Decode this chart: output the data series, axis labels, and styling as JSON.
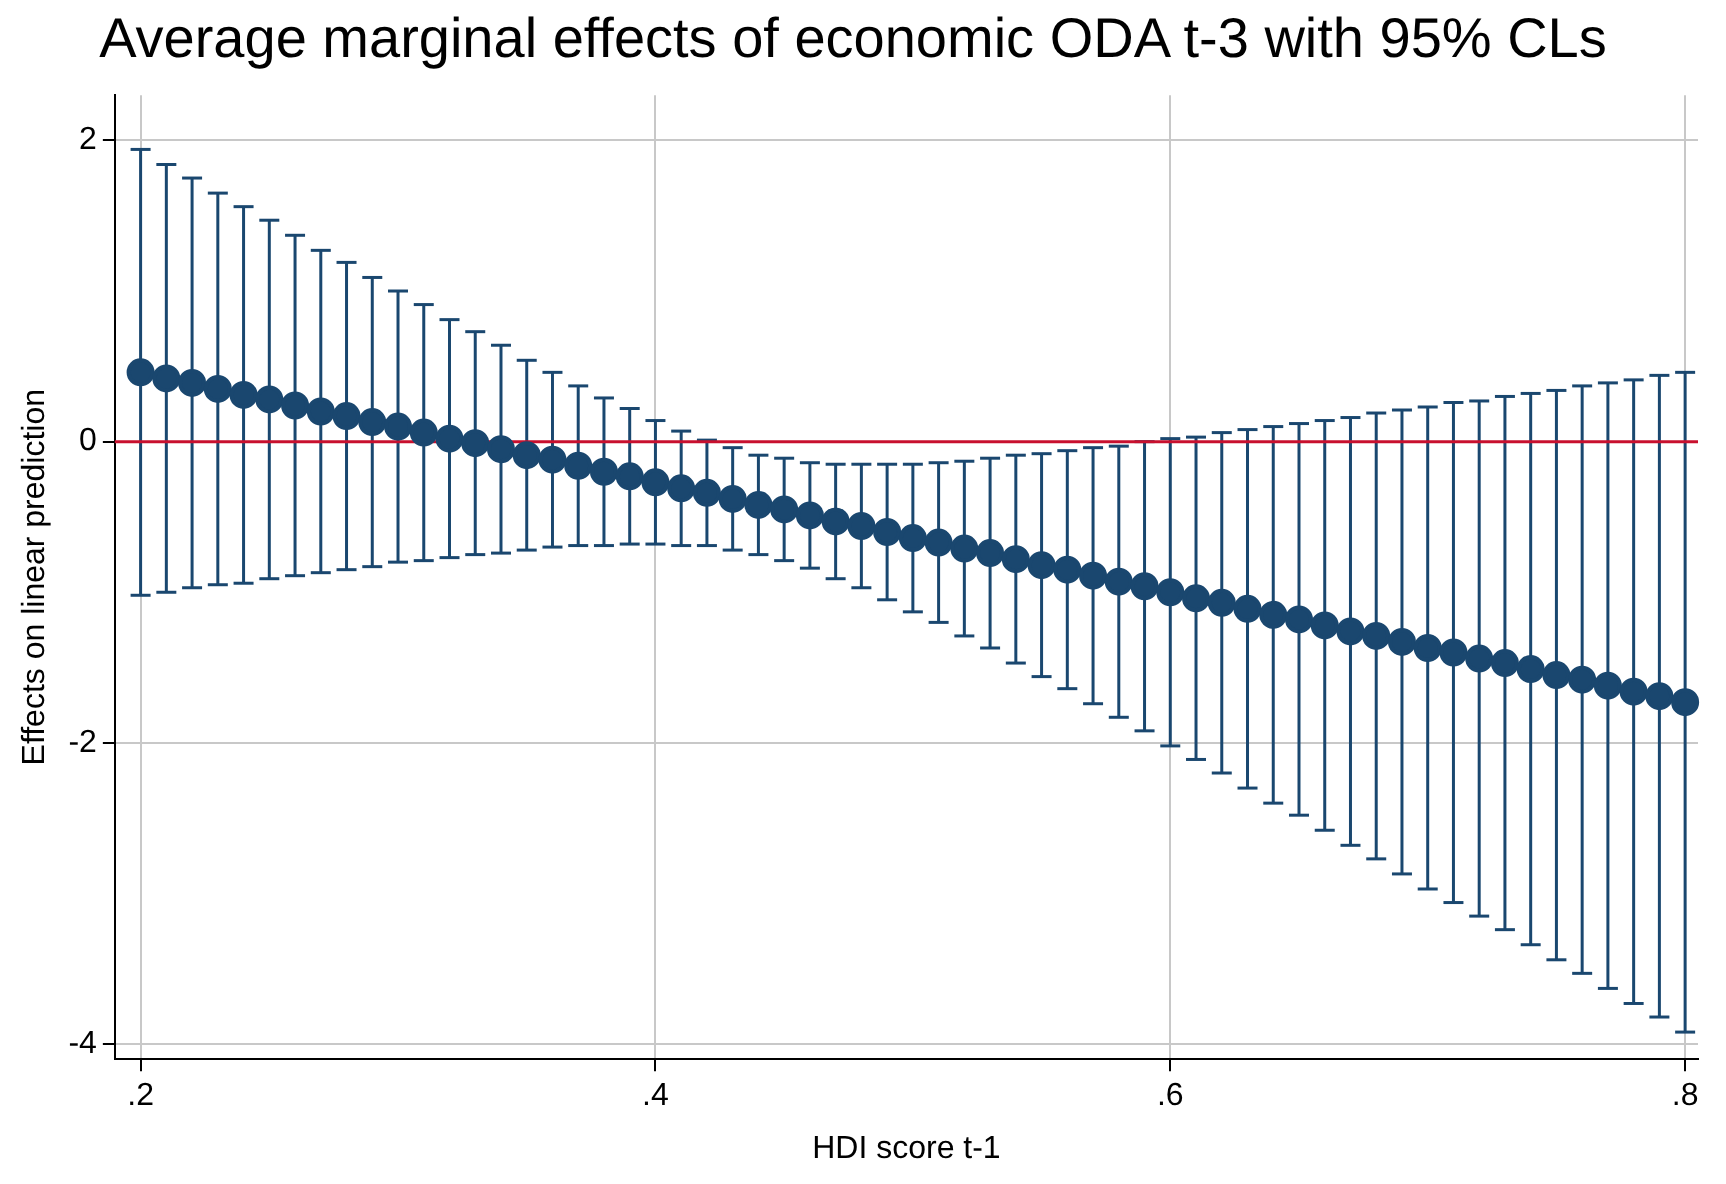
{
  "chart_data": {
    "type": "scatter",
    "title": "Average marginal effects of economic ODA t-3 with 95% CLs",
    "xlabel": "HDI score t-1",
    "ylabel": "Effects on linear prediction",
    "x": [
      0.2,
      0.21,
      0.22,
      0.23,
      0.24,
      0.25,
      0.26,
      0.27,
      0.28,
      0.29,
      0.3,
      0.31,
      0.32,
      0.33,
      0.34,
      0.35,
      0.36,
      0.37,
      0.38,
      0.39,
      0.4,
      0.41,
      0.42,
      0.43,
      0.44,
      0.45,
      0.46,
      0.47,
      0.48,
      0.49,
      0.5,
      0.51,
      0.52,
      0.53,
      0.54,
      0.55,
      0.56,
      0.57,
      0.58,
      0.59,
      0.6,
      0.61,
      0.62,
      0.63,
      0.64,
      0.65,
      0.66,
      0.67,
      0.68,
      0.69,
      0.7,
      0.71,
      0.72,
      0.73,
      0.74,
      0.75,
      0.76,
      0.77,
      0.78,
      0.79,
      0.8
    ],
    "series": [
      {
        "color": "#1a476f",
        "values": [
          0.46,
          0.42,
          0.39,
          0.35,
          0.31,
          0.28,
          0.24,
          0.2,
          0.17,
          0.13,
          0.1,
          0.06,
          0.02,
          -0.01,
          -0.05,
          -0.09,
          -0.12,
          -0.16,
          -0.2,
          -0.23,
          -0.27,
          -0.31,
          -0.34,
          -0.38,
          -0.42,
          -0.45,
          -0.49,
          -0.53,
          -0.56,
          -0.6,
          -0.64,
          -0.67,
          -0.71,
          -0.74,
          -0.78,
          -0.82,
          -0.85,
          -0.89,
          -0.93,
          -0.96,
          -1.0,
          -1.04,
          -1.07,
          -1.11,
          -1.15,
          -1.18,
          -1.22,
          -1.26,
          -1.29,
          -1.33,
          -1.37,
          -1.4,
          -1.44,
          -1.47,
          -1.51,
          -1.55,
          -1.58,
          -1.62,
          -1.66,
          -1.69,
          -1.73
        ],
        "errors": [
          1.48,
          1.42,
          1.36,
          1.3,
          1.25,
          1.19,
          1.13,
          1.07,
          1.02,
          0.96,
          0.9,
          0.85,
          0.79,
          0.74,
          0.69,
          0.63,
          0.58,
          0.53,
          0.49,
          0.45,
          0.41,
          0.38,
          0.35,
          0.34,
          0.33,
          0.34,
          0.35,
          0.38,
          0.41,
          0.45,
          0.49,
          0.53,
          0.58,
          0.63,
          0.69,
          0.74,
          0.79,
          0.85,
          0.9,
          0.96,
          1.02,
          1.07,
          1.13,
          1.19,
          1.25,
          1.3,
          1.36,
          1.42,
          1.48,
          1.54,
          1.6,
          1.66,
          1.71,
          1.77,
          1.83,
          1.89,
          1.95,
          2.01,
          2.07,
          2.13,
          2.19
        ]
      }
    ],
    "xlim": [
      0.19,
      0.805
    ],
    "xticks": [
      {
        "value": 0.2,
        "label": ".2"
      },
      {
        "value": 0.4,
        "label": ".4"
      },
      {
        "value": 0.6,
        "label": ".6"
      },
      {
        "value": 0.8,
        "label": ".8"
      }
    ],
    "ylim": [
      -4.1,
      2.3
    ],
    "yticks": [
      -4,
      -2,
      0,
      2
    ],
    "ref_lines": [
      {
        "axis": "y",
        "value": 0,
        "color": "#c8102e"
      }
    ],
    "grid": true,
    "legend": false,
    "marker": "circle"
  }
}
